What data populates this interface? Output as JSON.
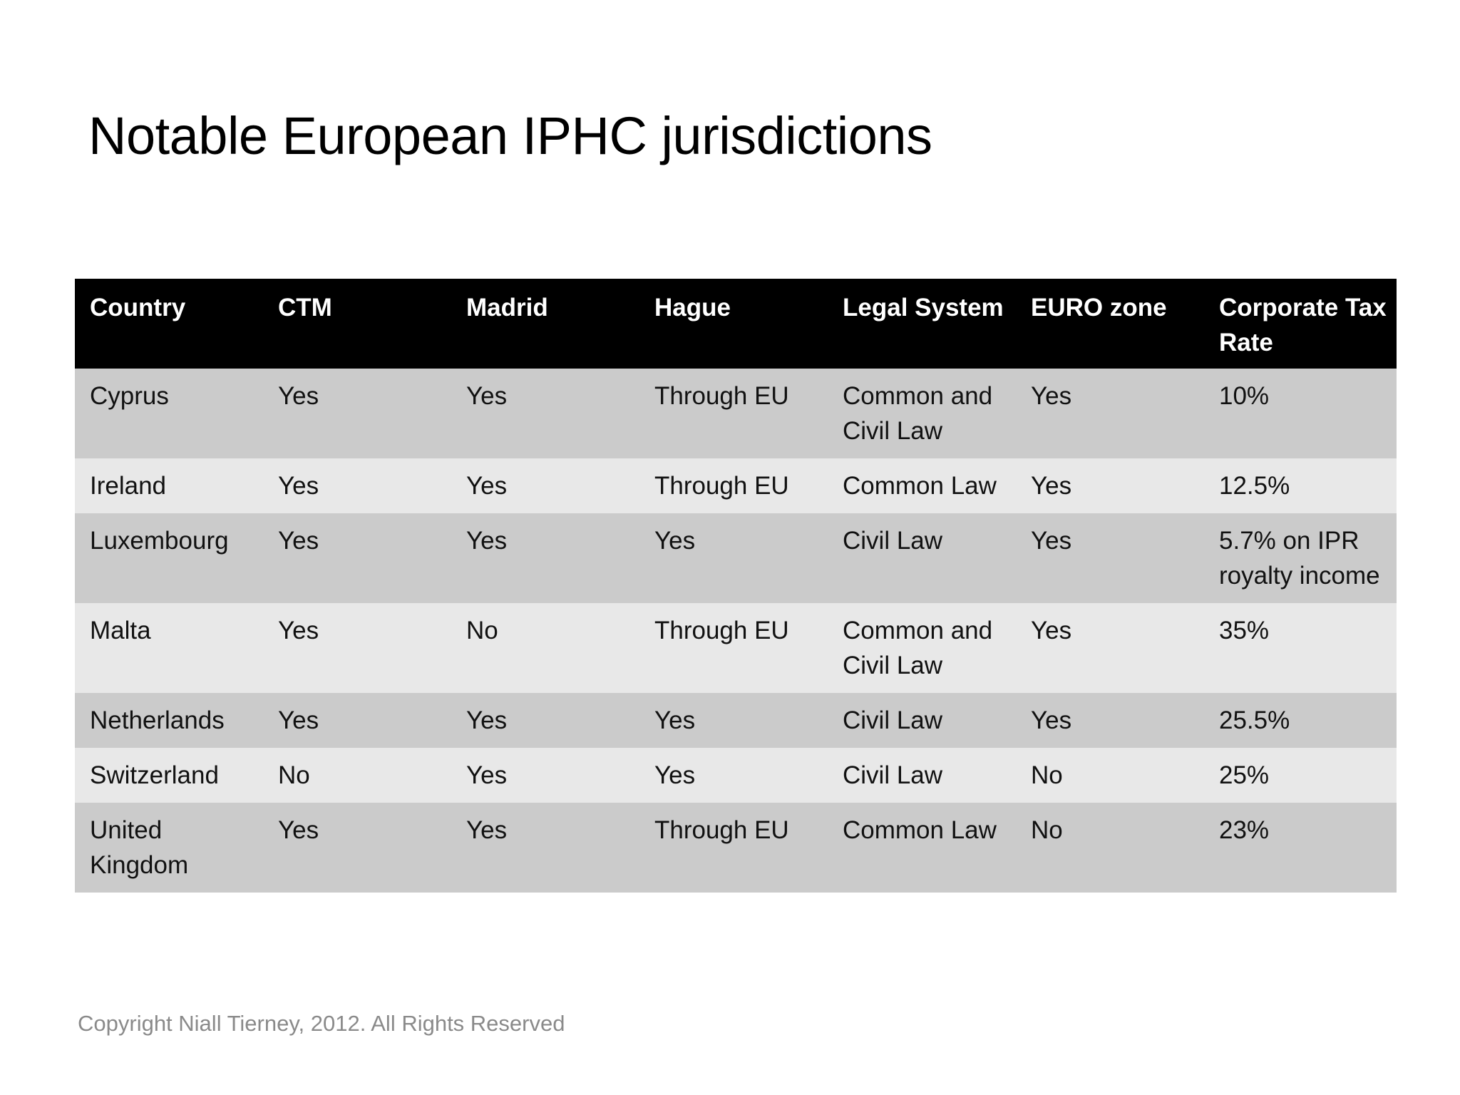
{
  "title": "Notable European IPHC jurisdictions",
  "table": {
    "headers": [
      "Country",
      "CTM",
      "Madrid",
      "Hague",
      "Legal System",
      "EURO zone",
      "Corporate Tax Rate"
    ],
    "rows": [
      [
        "Cyprus",
        "Yes",
        "Yes",
        "Through EU",
        "Common and Civil Law",
        "Yes",
        "10%"
      ],
      [
        "Ireland",
        "Yes",
        "Yes",
        "Through EU",
        "Common Law",
        "Yes",
        "12.5%"
      ],
      [
        "Luxembourg",
        "Yes",
        "Yes",
        "Yes",
        "Civil Law",
        "Yes",
        "5.7% on IPR royalty income"
      ],
      [
        "Malta",
        "Yes",
        "No",
        "Through EU",
        "Common and Civil Law",
        "Yes",
        "35%"
      ],
      [
        "Netherlands",
        "Yes",
        "Yes",
        "Yes",
        "Civil Law",
        "Yes",
        "25.5%"
      ],
      [
        "Switzerland",
        "No",
        "Yes",
        "Yes",
        "Civil Law",
        "No",
        "25%"
      ],
      [
        "United Kingdom",
        "Yes",
        "Yes",
        "Through EU",
        "Common Law",
        "No",
        "23%"
      ]
    ]
  },
  "footer": {
    "copyright": "Copyright Niall Tierney, 2012. All Rights Reserved"
  },
  "colors": {
    "header_bg": "#000000",
    "header_text": "#ffffff",
    "row_dark": "#cbcbcb",
    "row_light": "#e8e8e8",
    "footer_text": "#8a8a8a"
  }
}
